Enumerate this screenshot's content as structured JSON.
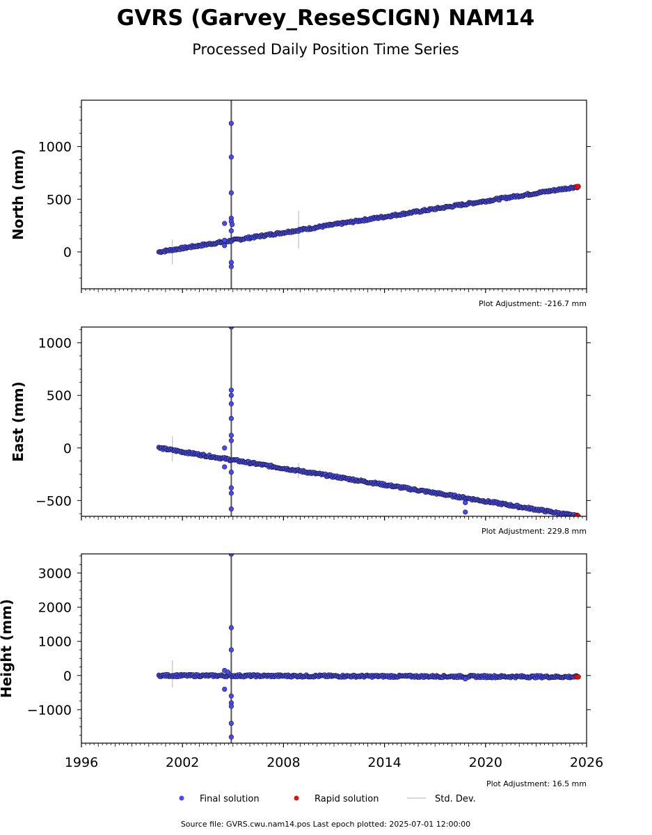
{
  "title": "GVRS (Garvey_ReseSCIGN) NAM14",
  "subtitle": "Processed Daily Position Time Series",
  "footer": "Source file: GVRS.cwu.nam14.pos  Last epoch plotted: 2025-07-01 12:00:00",
  "legend": {
    "final_label": "Final solution",
    "rapid_label": "Rapid solution",
    "std_label": "Std. Dev."
  },
  "colors": {
    "final": "#4a4aee",
    "final_edge": "#1a1a3a",
    "rapid": "#e01010",
    "std": "#cccccc",
    "gap_line": "#555555"
  },
  "chart_data": [
    {
      "type": "scatter",
      "ylabel": "North (mm)",
      "adjustment": "Plot Adjustment: -216.7 mm",
      "xlim": [
        1996,
        2026
      ],
      "ylim": [
        -350,
        1440
      ],
      "yticks": [
        0,
        500,
        1000
      ],
      "trend": {
        "start": [
          2000.6,
          0
        ],
        "end": [
          2025.5,
          620
        ]
      },
      "rapid_points": [
        [
          2025.4,
          618
        ],
        [
          2025.5,
          620
        ]
      ],
      "outliers": [
        [
          2004.9,
          1220
        ],
        [
          2004.9,
          900
        ],
        [
          2004.9,
          560
        ],
        [
          2004.9,
          320
        ],
        [
          2004.9,
          290
        ],
        [
          2004.95,
          260
        ],
        [
          2004.5,
          270
        ],
        [
          2004.9,
          200
        ],
        [
          2004.5,
          110
        ],
        [
          2004.5,
          60
        ],
        [
          2004.9,
          -100
        ],
        [
          2004.9,
          -140
        ]
      ],
      "std_bars": [
        [
          2001.4,
          0,
          120
        ],
        [
          2008.9,
          210,
          180
        ]
      ],
      "gap_line_x": 2004.9
    },
    {
      "type": "scatter",
      "ylabel": "East (mm)",
      "adjustment": "Plot Adjustment: 229.8 mm",
      "xlim": [
        1996,
        2026
      ],
      "ylim": [
        -650,
        1150
      ],
      "yticks": [
        -500,
        0,
        500,
        1000
      ],
      "trend": {
        "start": [
          2000.6,
          0
        ],
        "end": [
          2025.5,
          -650
        ]
      },
      "rapid_points": [
        [
          2025.4,
          -645
        ],
        [
          2025.5,
          -650
        ]
      ],
      "outliers": [
        [
          2004.9,
          1150
        ],
        [
          2004.9,
          550
        ],
        [
          2004.9,
          500
        ],
        [
          2004.9,
          420
        ],
        [
          2004.9,
          280
        ],
        [
          2004.9,
          120
        ],
        [
          2004.9,
          70
        ],
        [
          2004.5,
          0
        ],
        [
          2004.5,
          -180
        ],
        [
          2004.9,
          -230
        ],
        [
          2004.9,
          -380
        ],
        [
          2004.9,
          -430
        ],
        [
          2004.9,
          -580
        ],
        [
          2018.8,
          -520
        ],
        [
          2018.8,
          -610
        ]
      ],
      "std_bars": [
        [
          2001.4,
          -10,
          120
        ],
        [
          2008.9,
          -215,
          70
        ]
      ],
      "gap_line_x": 2004.9
    },
    {
      "type": "scatter",
      "ylabel": "Height (mm)",
      "adjustment": "Plot Adjustment: 16.5 mm",
      "xlim": [
        1996,
        2026
      ],
      "xticks": [
        1996,
        2002,
        2008,
        2014,
        2020,
        2026
      ],
      "ylim": [
        -1980,
        3560
      ],
      "yticks": [
        -1000,
        0,
        1000,
        2000,
        3000
      ],
      "trend": {
        "start": [
          2000.6,
          0
        ],
        "end": [
          2025.5,
          -40
        ]
      },
      "rapid_points": [
        [
          2025.4,
          -38
        ],
        [
          2025.5,
          -40
        ]
      ],
      "outliers": [
        [
          2004.9,
          3550
        ],
        [
          2004.9,
          1400
        ],
        [
          2004.9,
          750
        ],
        [
          2004.5,
          150
        ],
        [
          2004.7,
          100
        ],
        [
          2004.5,
          -400
        ],
        [
          2004.9,
          -600
        ],
        [
          2004.9,
          -800
        ],
        [
          2004.9,
          -900
        ],
        [
          2004.9,
          -1400
        ],
        [
          2004.9,
          -1800
        ],
        [
          2018.8,
          -100
        ]
      ],
      "std_bars": [
        [
          2001.4,
          50,
          400
        ],
        [
          2008.9,
          0,
          80
        ]
      ],
      "gap_line_x": 2004.9
    }
  ]
}
